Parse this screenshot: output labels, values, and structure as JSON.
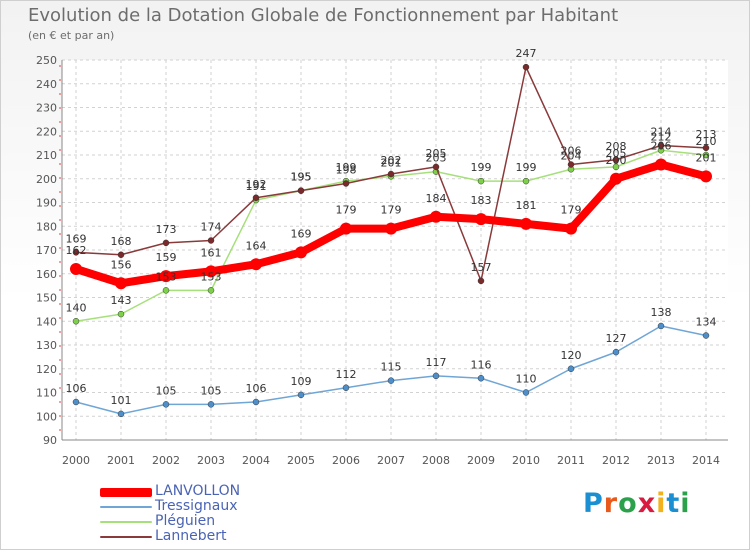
{
  "title": "Evolution de la Dotation Globale de Fonctionnement par Habitant",
  "subtitle": "(en € et par an)",
  "logo": {
    "text": "Proxiti",
    "letters": [
      "P",
      "r",
      "o",
      "x",
      "i",
      "t",
      "i"
    ],
    "colors": [
      "#1a8fd1",
      "#e8591a",
      "#2aa14a",
      "#d81b3f",
      "#f2b21b",
      "#1a8fd1",
      "#2aa14a"
    ]
  },
  "chart_data": {
    "type": "line",
    "title": "Evolution de la Dotation Globale de Fonctionnement par Habitant",
    "ylabel": "(en € et par an)",
    "xlabel": "",
    "ylim": [
      90,
      250
    ],
    "yticks": [
      90,
      100,
      110,
      120,
      130,
      140,
      150,
      160,
      170,
      180,
      190,
      200,
      210,
      220,
      230,
      240,
      250
    ],
    "grid": true,
    "legend_position": "bottom-left",
    "categories": [
      "2000",
      "2001",
      "2002",
      "2003",
      "2004",
      "2005",
      "2006",
      "2007",
      "2008",
      "2009",
      "2010",
      "2011",
      "2012",
      "2013",
      "2014"
    ],
    "series": [
      {
        "name": "LANVOLLON",
        "color": "#ff0000",
        "values": [
          162,
          156,
          159,
          161,
          164,
          169,
          179,
          179,
          184,
          183,
          181,
          179,
          200,
          206,
          201
        ],
        "labels": [
          "162",
          "156",
          "159",
          "161",
          "164",
          "169",
          "179",
          "179",
          "184",
          "183",
          "181",
          "179",
          "200",
          "206",
          "201"
        ]
      },
      {
        "name": "Tressignaux",
        "color": "#4f8fc9",
        "values": [
          106,
          101,
          105,
          105,
          106,
          109,
          112,
          115,
          117,
          116,
          110,
          120,
          127,
          138,
          134
        ],
        "labels": [
          "106",
          "101",
          "105",
          "105",
          "106",
          "109",
          "112",
          "115",
          "117",
          "116",
          "110",
          "120",
          "127",
          "138",
          "134"
        ]
      },
      {
        "name": "Pléguien",
        "color": "#7ed04a",
        "values": [
          140,
          143,
          153,
          153,
          191,
          195,
          199,
          201,
          203,
          199,
          199,
          204,
          205,
          212,
          210
        ],
        "labels": [
          "140",
          "143",
          "153",
          "153",
          "191",
          "195",
          "199",
          "201",
          "203",
          "199",
          "199",
          "204",
          "205",
          "212",
          "210"
        ]
      },
      {
        "name": "Lannebert",
        "color": "#7a2a2a",
        "values": [
          169,
          168,
          173,
          174,
          192,
          195,
          198,
          202,
          205,
          157,
          247,
          206,
          208,
          214,
          213
        ],
        "labels": [
          "169",
          "168",
          "173",
          "174",
          "192",
          "195",
          "198",
          "202",
          "205",
          "157",
          "247",
          "206",
          "208",
          "214",
          "213"
        ]
      }
    ]
  }
}
